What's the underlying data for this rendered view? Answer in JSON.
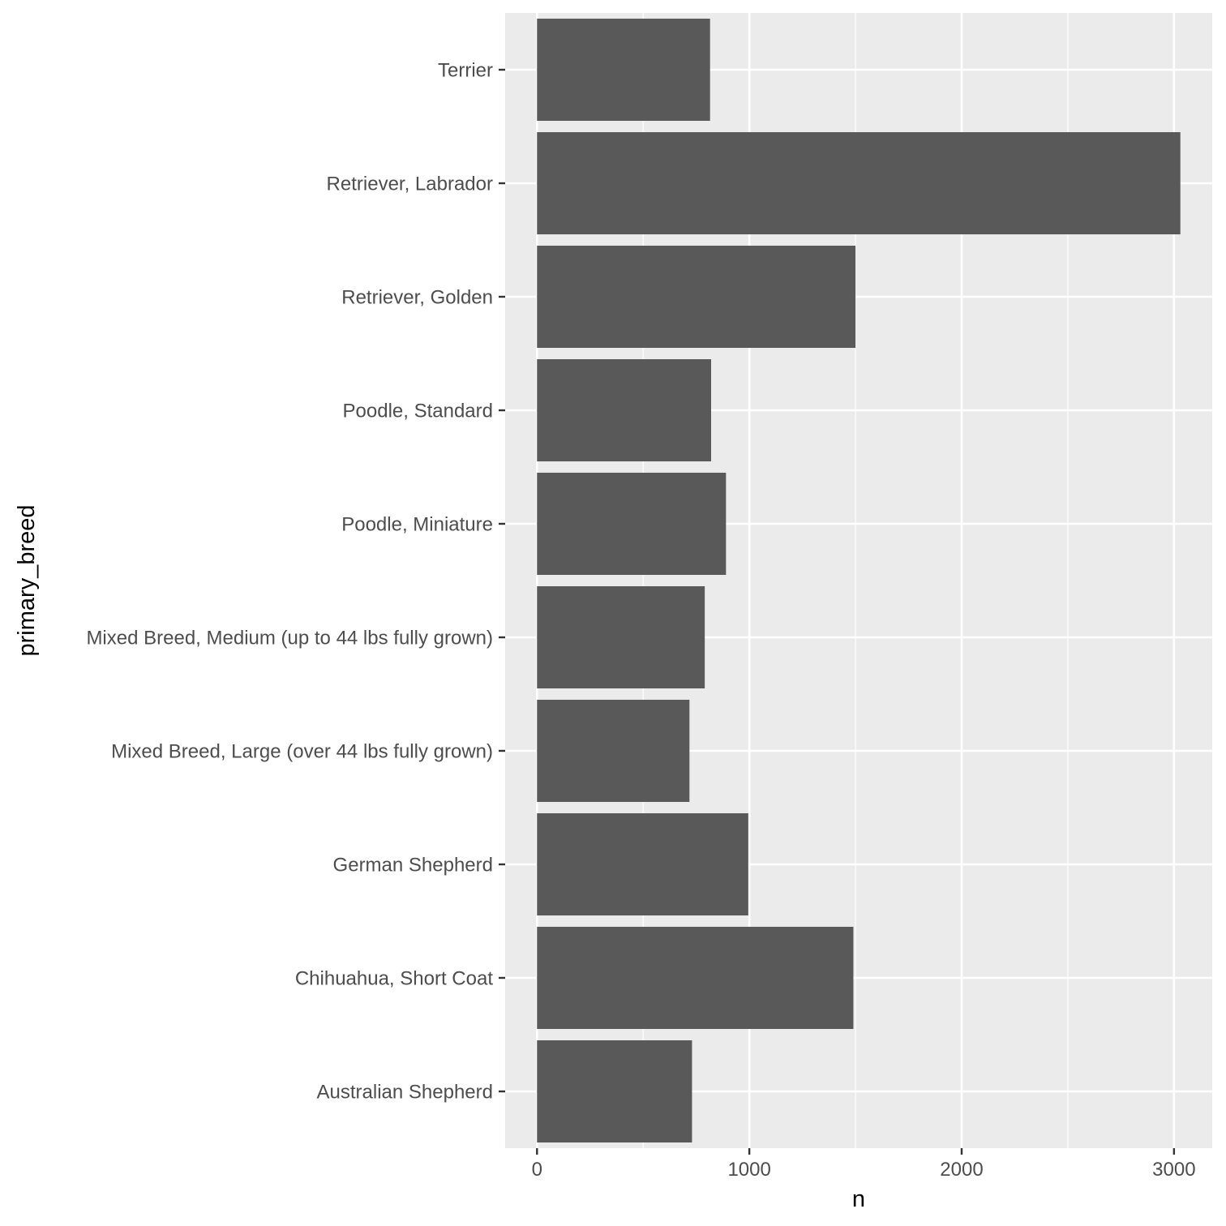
{
  "chart_data": {
    "type": "bar",
    "orientation": "horizontal",
    "categories": [
      "Australian Shepherd",
      "Chihuahua, Short Coat",
      "German Shepherd",
      "Mixed Breed, Large (over 44 lbs fully grown)",
      "Mixed Breed, Medium (up to 44 lbs fully grown)",
      "Poodle, Miniature",
      "Poodle, Standard",
      "Retriever, Golden",
      "Retriever, Labrador",
      "Terrier"
    ],
    "values": [
      730,
      1490,
      995,
      718,
      790,
      890,
      820,
      1500,
      3030,
      815
    ],
    "xlabel": "n",
    "ylabel": "primary_breed",
    "xlim": [
      -150,
      3180
    ],
    "x_ticks": [
      0,
      1000,
      2000,
      3000
    ],
    "x_minor_ticks": [
      500,
      1500,
      2500
    ],
    "grid": true,
    "legend": "none",
    "colors": {
      "bar": "#595959",
      "panel": "#ebebeb",
      "grid": "#ffffff",
      "tick": "#333333"
    }
  }
}
